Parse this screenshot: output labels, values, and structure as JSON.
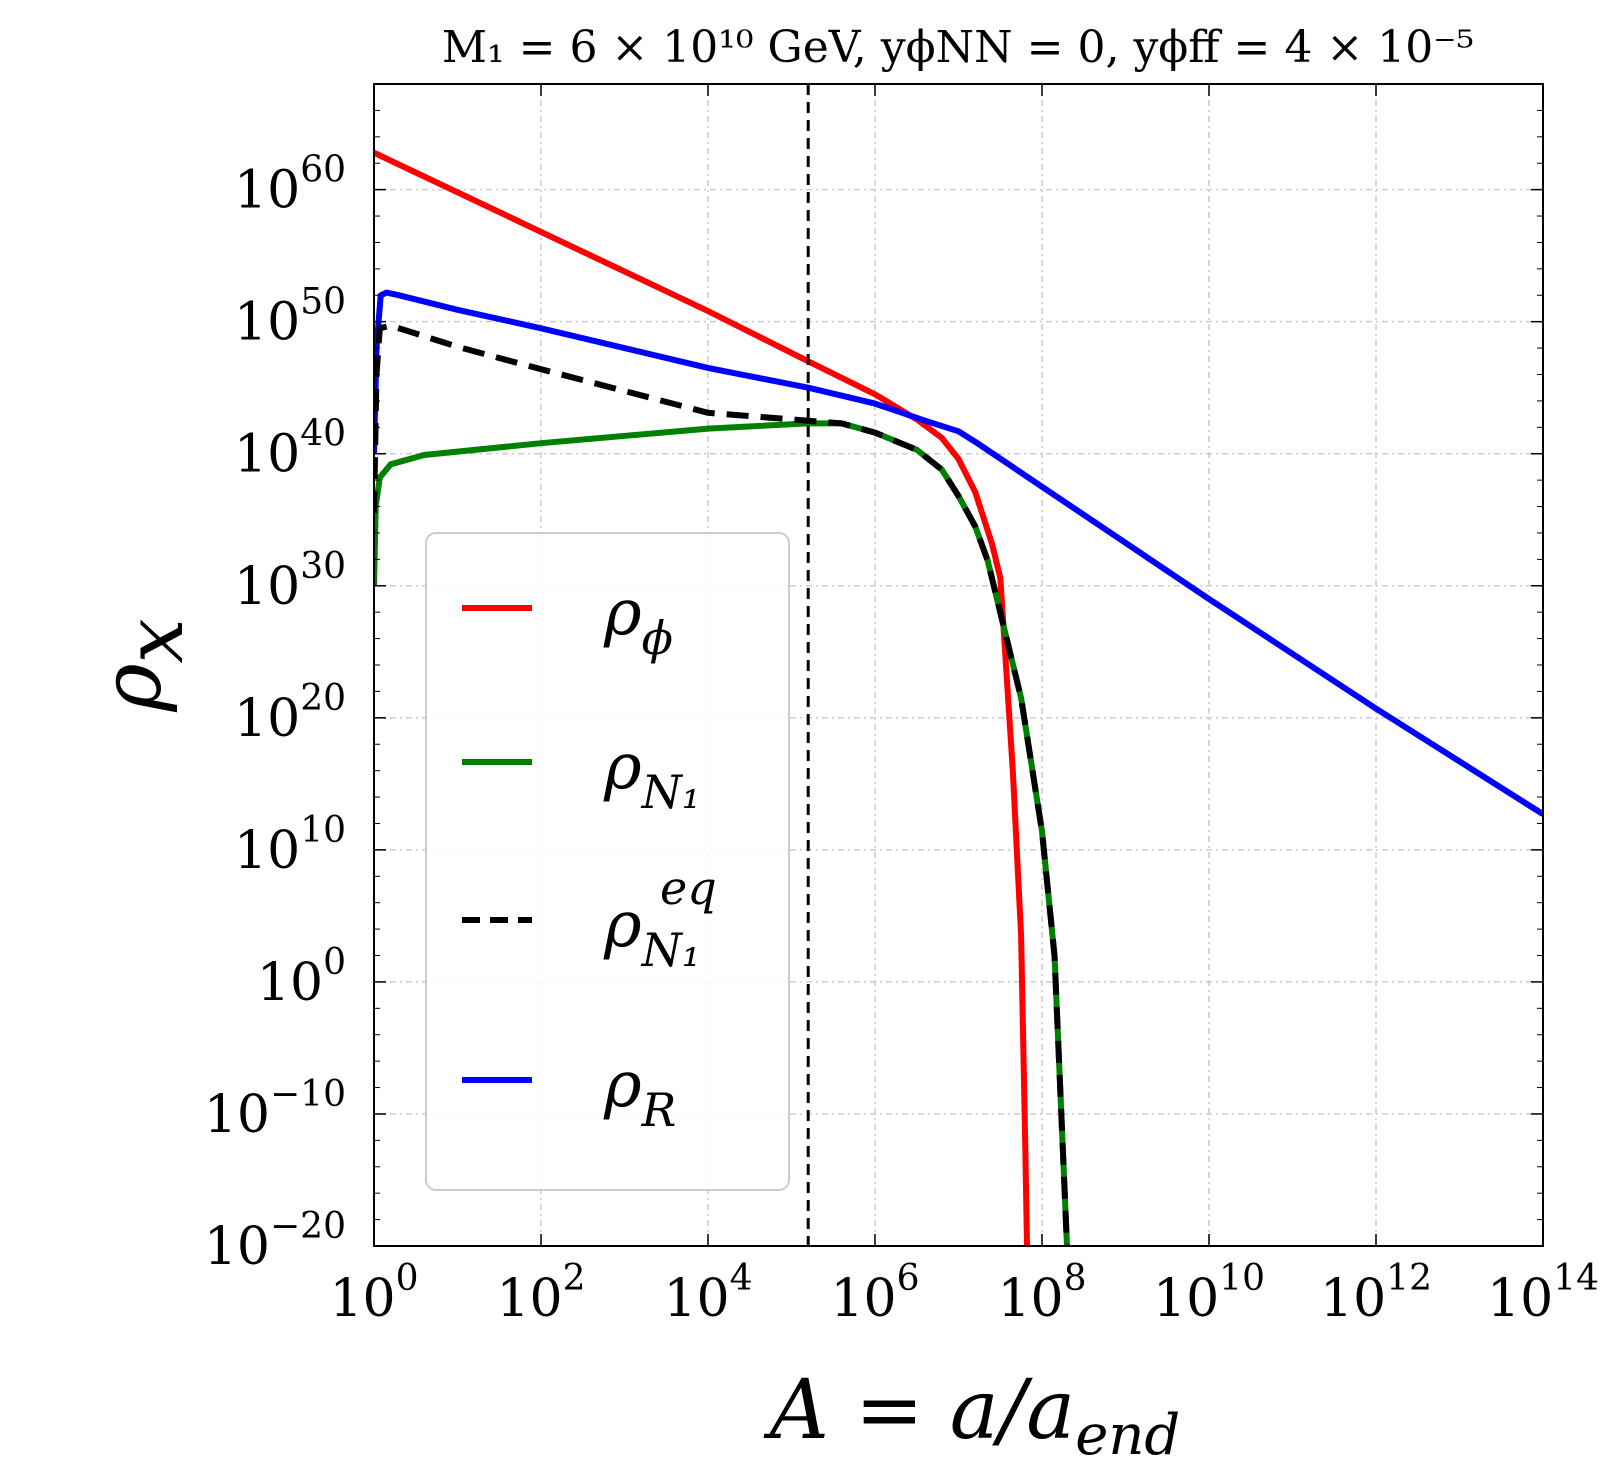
{
  "chart_data": {
    "type": "line",
    "title": "M₁ = 6 × 10¹⁰ GeV, yϕNN = 0, yϕff = 4 × 10⁻⁵",
    "xlabel": "A = a/a",
    "xlabel_sub": "end",
    "ylabel": "ρ",
    "ylabel_sub": "x",
    "xscale": "log10",
    "yscale": "log10",
    "xlim_log10": [
      0,
      14
    ],
    "ylim_log10": [
      -20,
      68
    ],
    "grid": true,
    "legend_position": "center-left",
    "xticks": [
      {
        "value": 0,
        "base": "10",
        "exp": "0"
      },
      {
        "value": 2,
        "base": "10",
        "exp": "2"
      },
      {
        "value": 4,
        "base": "10",
        "exp": "4"
      },
      {
        "value": 6,
        "base": "10",
        "exp": "6"
      },
      {
        "value": 8,
        "base": "10",
        "exp": "8"
      },
      {
        "value": 10,
        "base": "10",
        "exp": "10"
      },
      {
        "value": 12,
        "base": "10",
        "exp": "12"
      },
      {
        "value": 14,
        "base": "10",
        "exp": "14"
      }
    ],
    "yticks": [
      {
        "value": -20,
        "base": "10",
        "exp": "−20"
      },
      {
        "value": -10,
        "base": "10",
        "exp": "−10"
      },
      {
        "value": 0,
        "base": "10",
        "exp": "0"
      },
      {
        "value": 10,
        "base": "10",
        "exp": "10"
      },
      {
        "value": 20,
        "base": "10",
        "exp": "20"
      },
      {
        "value": 30,
        "base": "10",
        "exp": "30"
      },
      {
        "value": 40,
        "base": "10",
        "exp": "40"
      },
      {
        "value": 50,
        "base": "10",
        "exp": "50"
      },
      {
        "value": 60,
        "base": "10",
        "exp": "60"
      }
    ],
    "vline_log10_x": 5.2,
    "series": [
      {
        "name": "ρ",
        "sub": "ϕ",
        "sup": "",
        "color": "#ff0000",
        "dash": "solid",
        "points": [
          [
            0,
            62.8
          ],
          [
            2,
            56.8
          ],
          [
            4,
            50.8
          ],
          [
            5.2,
            47.0
          ],
          [
            6,
            44.5
          ],
          [
            6.5,
            42.6
          ],
          [
            6.8,
            41.2
          ],
          [
            7.0,
            39.6
          ],
          [
            7.2,
            37.1
          ],
          [
            7.4,
            33.2
          ],
          [
            7.5,
            30.6
          ],
          [
            7.65,
            16.0
          ],
          [
            7.75,
            3.5
          ],
          [
            7.8,
            -12.5
          ],
          [
            7.82,
            -20.0
          ]
        ]
      },
      {
        "name": "ρ",
        "sub": "N₁",
        "sup": "",
        "color": "#008000",
        "dash": "solid",
        "points": [
          [
            0,
            30.0
          ],
          [
            0.02,
            36.0
          ],
          [
            0.07,
            38.2
          ],
          [
            0.2,
            39.2
          ],
          [
            0.6,
            39.9
          ],
          [
            2,
            40.8
          ],
          [
            4,
            41.9
          ],
          [
            5.2,
            42.3
          ],
          [
            5.6,
            42.3
          ],
          [
            6.0,
            41.6
          ],
          [
            6.5,
            40.3
          ],
          [
            6.8,
            38.8
          ],
          [
            7.0,
            36.8
          ],
          [
            7.2,
            34.5
          ],
          [
            7.35,
            31.9
          ],
          [
            7.75,
            21.5
          ],
          [
            8.0,
            11.4
          ],
          [
            8.15,
            2.0
          ],
          [
            8.3,
            -20.0
          ]
        ]
      },
      {
        "name": "ρ",
        "sub": "N₁",
        "sup": "eq",
        "color": "#000000",
        "dash": "dashed",
        "points": [
          [
            0,
            35.5
          ],
          [
            0.03,
            46.0
          ],
          [
            0.07,
            49.5
          ],
          [
            0.2,
            49.7
          ],
          [
            1,
            48.1
          ],
          [
            2,
            46.4
          ],
          [
            4,
            43.1
          ],
          [
            5.2,
            42.5
          ],
          [
            5.6,
            42.3
          ],
          [
            6.0,
            41.6
          ],
          [
            6.5,
            40.3
          ],
          [
            6.8,
            38.8
          ],
          [
            7.0,
            36.8
          ],
          [
            7.2,
            34.5
          ],
          [
            7.35,
            31.9
          ],
          [
            7.75,
            21.5
          ],
          [
            8.0,
            11.4
          ],
          [
            8.15,
            2.0
          ],
          [
            8.3,
            -20.0
          ]
        ]
      },
      {
        "name": "ρ",
        "sub": "R",
        "sup": "",
        "color": "#0000ff",
        "dash": "solid",
        "points": [
          [
            0,
            40.0
          ],
          [
            0.03,
            48.0
          ],
          [
            0.08,
            52.0
          ],
          [
            0.15,
            52.2
          ],
          [
            0.3,
            52.0
          ],
          [
            1,
            50.9
          ],
          [
            2,
            49.5
          ],
          [
            4,
            46.5
          ],
          [
            5.2,
            45.0
          ],
          [
            6.0,
            43.8
          ],
          [
            6.6,
            42.5
          ],
          [
            7.0,
            41.7
          ],
          [
            7.2,
            40.9
          ],
          [
            8.0,
            37.5
          ],
          [
            10,
            29.0
          ],
          [
            12,
            20.7
          ],
          [
            14,
            12.7
          ]
        ]
      }
    ]
  }
}
